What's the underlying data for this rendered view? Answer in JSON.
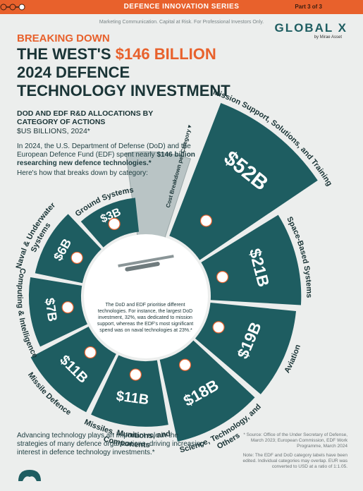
{
  "header": {
    "series": "DEFENCE INNOVATION SERIES",
    "part": "Part 3 of 3",
    "disclaimer": "Marketing Communication. Capital at Risk. For Professional Investors Only.",
    "brand": "GLOBAL X",
    "brand_sub": "by Mirae Asset"
  },
  "chart_data": {
    "type": "radial-bar",
    "kicker": "BREAKING DOWN",
    "title_lead": "THE WEST'S",
    "title_highlight": "$146 BILLION",
    "title_rest": "2024 DEFENCE TECHNOLOGY INVESTMENT",
    "subtitle": "DOD AND EDF R&D ALLOCATIONS BY CATEGORY OF ACTIONS",
    "unit": "$US BILLIONS, 2024*",
    "intro": "In 2024, the U.S. Department of Defense (DoD) and the European Defence Fund (EDF) spent nearly",
    "intro_bold": "$146 billion researching new defence technologies.*",
    "lead_in": "Here's how that breaks down by category:",
    "axis_label": "Cost Breakdown per Category ▾",
    "center_note": "The DoD and EDF prioritise different technologies. For instance, the largest DoD investment, 32%, was dedicated to mission support, whereas the EDF's most significant spend was on naval technologies at 23%.*",
    "categories": [
      "Mission Support, Solutions, and Training",
      "Space-Based Systems",
      "Aviation",
      "Science, Technology, and Others",
      "Missiles, Munitions, and Components",
      "Missile Defence",
      "Computing & Intelligence",
      "Naval & Underwater Systems",
      "Ground Systems"
    ],
    "values": [
      52,
      21,
      19,
      18,
      11,
      11,
      7,
      6,
      3
    ],
    "value_labels": [
      "$52B",
      "$21B",
      "$19B",
      "$18B",
      "$11B",
      "$11B",
      "$7B",
      "$6B",
      "$3B"
    ],
    "color": "#1e5d61"
  },
  "footer": {
    "text": "Advancing technology plays an important role in the strategies of many defence organisations, driving increasing interest in defence technology investments.*",
    "source": "* Source: Office of the Under Secretary of Defense, March 2023; European Commission, EDF Work Programme, March 2024",
    "note": "Note: The EDF and DoD category labels have been edited. Individual categories may overlap. EUR was converted to USD at a ratio of 1:1.05."
  }
}
